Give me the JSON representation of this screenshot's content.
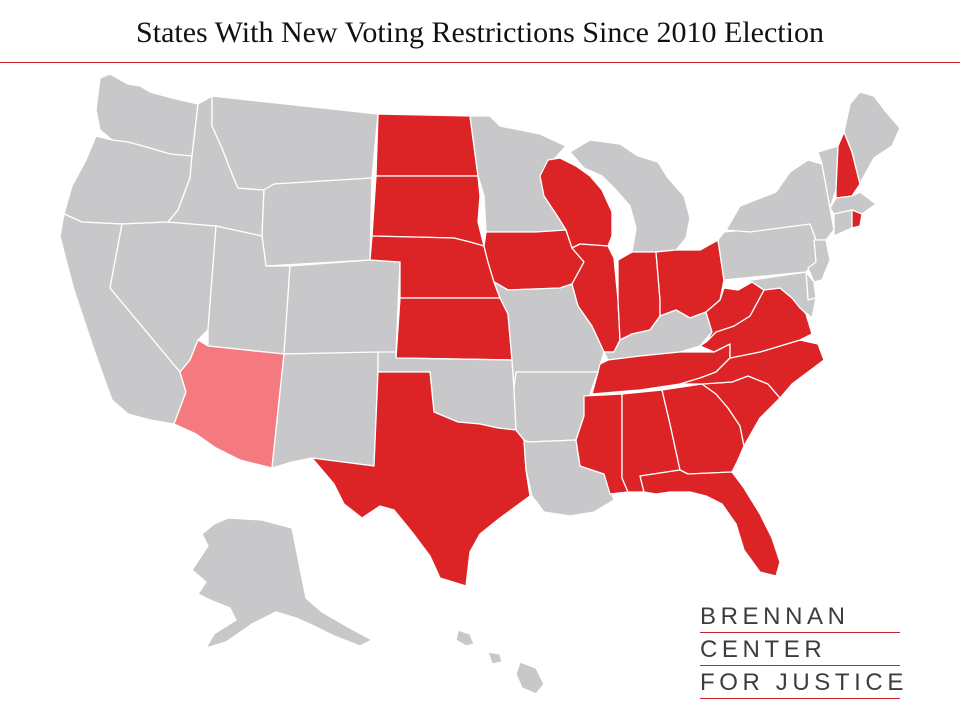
{
  "title": "States With New Voting Restrictions Since 2010 Election",
  "logo": {
    "line1": "BRENNAN",
    "line2": "CENTER",
    "line3": "FOR JUSTICE"
  },
  "colors": {
    "restricted": "#dc2426",
    "partial": "#f47a80",
    "unrestricted": "#c8c8ca",
    "rule": "#c8242b"
  },
  "states": {
    "restricted": [
      "ND",
      "SD",
      "NE",
      "KS",
      "TX",
      "IA",
      "WI",
      "IL",
      "IN",
      "OH",
      "WV",
      "VA",
      "NC",
      "TN",
      "SC",
      "GA",
      "AL",
      "MS",
      "FL",
      "NH",
      "RI"
    ],
    "partial": [
      "AZ"
    ],
    "unrestricted": [
      "WA",
      "OR",
      "CA",
      "NV",
      "ID",
      "MT",
      "WY",
      "UT",
      "CO",
      "NM",
      "OK",
      "MN",
      "MO",
      "AR",
      "LA",
      "MI",
      "KY",
      "PA",
      "NY",
      "ME",
      "VT",
      "MA",
      "CT",
      "NJ",
      "DE",
      "MD",
      "AK",
      "HI"
    ]
  }
}
